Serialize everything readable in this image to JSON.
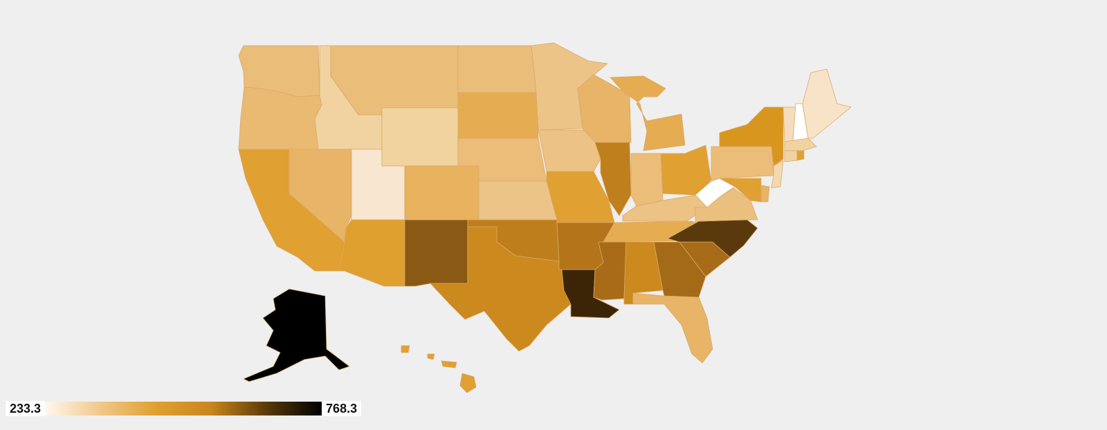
{
  "map": {
    "title": "",
    "legend": {
      "min_label": "233.3",
      "max_label": "768.3",
      "min_value": 233.3,
      "max_value": 768.3,
      "gradient": [
        "#fff8ee",
        "#f0c88a",
        "#e0a030",
        "#c8861e",
        "#5a3a08",
        "#000000"
      ]
    },
    "colors": {
      "background": "#efefef",
      "border": "#d9a96a"
    },
    "states": [
      {
        "id": "WA",
        "fill": "#eabd78"
      },
      {
        "id": "OR",
        "fill": "#eab972"
      },
      {
        "id": "CA",
        "fill": "#e0a032"
      },
      {
        "id": "NV",
        "fill": "#e8b468"
      },
      {
        "id": "ID",
        "fill": "#f0d3a0"
      },
      {
        "id": "MT",
        "fill": "#eabd78"
      },
      {
        "id": "WY",
        "fill": "#f1d39f"
      },
      {
        "id": "UT",
        "fill": "#f8e6d0"
      },
      {
        "id": "AZ",
        "fill": "#e0a030"
      },
      {
        "id": "CO",
        "fill": "#e8b25e"
      },
      {
        "id": "NM",
        "fill": "#8a5a14"
      },
      {
        "id": "ND",
        "fill": "#eabd78"
      },
      {
        "id": "SD",
        "fill": "#e6ac52"
      },
      {
        "id": "NE",
        "fill": "#ebbd78"
      },
      {
        "id": "KS",
        "fill": "#ecc488"
      },
      {
        "id": "OK",
        "fill": "#bf7e1c"
      },
      {
        "id": "TX",
        "fill": "#cb891e"
      },
      {
        "id": "MN",
        "fill": "#ecc488"
      },
      {
        "id": "IA",
        "fill": "#ecc285"
      },
      {
        "id": "MO",
        "fill": "#e0a032"
      },
      {
        "id": "AR",
        "fill": "#b4741a"
      },
      {
        "id": "LA",
        "fill": "#3c2506"
      },
      {
        "id": "WI",
        "fill": "#e8b468"
      },
      {
        "id": "IL",
        "fill": "#be7f1c"
      },
      {
        "id": "MI",
        "fill": "#e6ac52"
      },
      {
        "id": "IN",
        "fill": "#ebbd78"
      },
      {
        "id": "OH",
        "fill": "#e0a032"
      },
      {
        "id": "KY",
        "fill": "#ecc285"
      },
      {
        "id": "TN",
        "fill": "#e6ac52"
      },
      {
        "id": "MS",
        "fill": "#a86c18"
      },
      {
        "id": "AL",
        "fill": "#cb891e"
      },
      {
        "id": "GA",
        "fill": "#a46a17"
      },
      {
        "id": "FL",
        "fill": "#e8b468"
      },
      {
        "id": "SC",
        "fill": "#a86c18"
      },
      {
        "id": "NC",
        "fill": "#5a3a0c"
      },
      {
        "id": "VA",
        "fill": "#ebc07e"
      },
      {
        "id": "WV",
        "fill": "#ffffff"
      },
      {
        "id": "PA",
        "fill": "#ebbd78"
      },
      {
        "id": "NY",
        "fill": "#d8961e"
      },
      {
        "id": "VT",
        "fill": "#f5dcbc"
      },
      {
        "id": "NH",
        "fill": "#ffffff"
      },
      {
        "id": "ME",
        "fill": "#f7e3c8"
      },
      {
        "id": "MA",
        "fill": "#f0d3a0"
      },
      {
        "id": "CT",
        "fill": "#f0d3a0"
      },
      {
        "id": "RI",
        "fill": "#e0a032"
      },
      {
        "id": "NJ",
        "fill": "#f3d8b0"
      },
      {
        "id": "DE",
        "fill": "#e8b468"
      },
      {
        "id": "MD",
        "fill": "#e0a032"
      },
      {
        "id": "AK",
        "fill": "#000000"
      },
      {
        "id": "HI",
        "fill": "#e0a032"
      }
    ]
  }
}
